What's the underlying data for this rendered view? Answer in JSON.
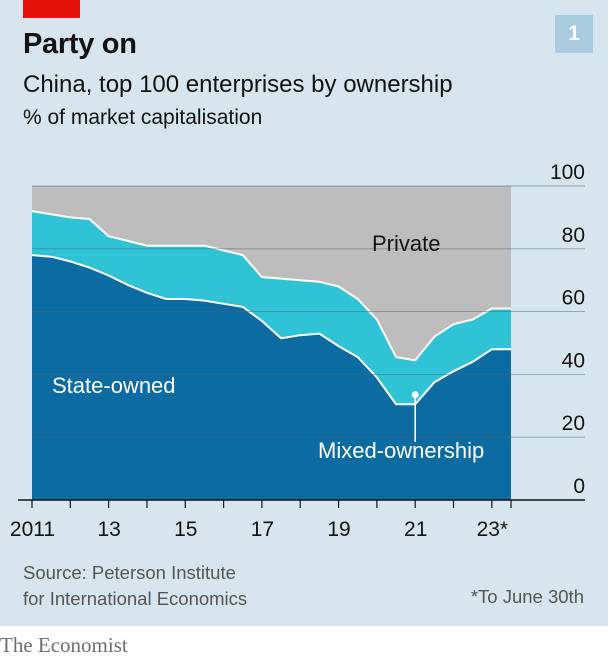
{
  "header": {
    "title": "Party on",
    "subtitle": "China, top 100 enterprises by ownership",
    "unit": "% of market capitalisation",
    "badge": "1"
  },
  "footer": {
    "source_line1": "Source: Peterson Institute",
    "source_line2": "for International Economics",
    "footnote": "*To June 30th",
    "brand": "The Economist"
  },
  "colors": {
    "private": "#bdbdbd",
    "mixed": "#2fc3d5",
    "state": "#0c6ba1",
    "brand_red": "#e3120b",
    "background": "#d6e5ee"
  },
  "chart_data": {
    "type": "area",
    "stacked": true,
    "x": [
      2011,
      2011.5,
      2012,
      2012.5,
      2013,
      2013.5,
      2014,
      2014.5,
      2015,
      2015.5,
      2016,
      2016.5,
      2017,
      2017.5,
      2018,
      2018.5,
      2019,
      2019.5,
      2020,
      2020.5,
      2021,
      2021.5,
      2022,
      2022.5,
      2023,
      2023.5
    ],
    "x_ticks": [
      {
        "value": 2011,
        "label": "2011"
      },
      {
        "value": 2013,
        "label": "13"
      },
      {
        "value": 2015,
        "label": "15"
      },
      {
        "value": 2017,
        "label": "17"
      },
      {
        "value": 2019,
        "label": "19"
      },
      {
        "value": 2021,
        "label": "21"
      },
      {
        "value": 2023,
        "label": "23*"
      }
    ],
    "ylim": [
      0,
      100
    ],
    "y_ticks": [
      0,
      20,
      40,
      60,
      80,
      100
    ],
    "axis_side": "right",
    "grid": true,
    "series": [
      {
        "name": "State-owned",
        "values": [
          78,
          77.5,
          76,
          74,
          71.5,
          68.5,
          66,
          64,
          64,
          63.5,
          62.5,
          61.5,
          57,
          51.5,
          52.5,
          53,
          49,
          45.5,
          39,
          30.5,
          30.5,
          37.5,
          41,
          44,
          48,
          48
        ]
      },
      {
        "name": "Mixed-ownership",
        "values": [
          14,
          13.5,
          14,
          15.5,
          12.5,
          14,
          15,
          17,
          17,
          17.5,
          17,
          16.5,
          14,
          19,
          17.5,
          16.5,
          19,
          18.5,
          18.5,
          15,
          14,
          14.5,
          15,
          13.5,
          13,
          13
        ]
      },
      {
        "name": "Private",
        "values": [
          8,
          9,
          10,
          10.5,
          16,
          17.5,
          19,
          19,
          19,
          19,
          20.5,
          22,
          29,
          29.5,
          30,
          30.5,
          32,
          36,
          42.5,
          54.5,
          55.5,
          48,
          44,
          42.5,
          39,
          39
        ]
      }
    ],
    "labels": [
      "State-owned",
      "Private",
      "Mixed-ownership"
    ]
  }
}
